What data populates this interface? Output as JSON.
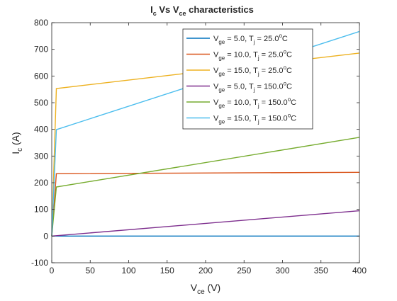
{
  "chart_data": {
    "type": "line",
    "title": {
      "base": "I",
      "base_sub": "c",
      "mid": " Vs V",
      "mid_sub": "ce",
      "tail": " characteristics"
    },
    "xlabel": {
      "base": "V",
      "sub": "ce",
      "tail": " (V)"
    },
    "ylabel": {
      "base": "I",
      "sub": "c",
      "tail": " (A)"
    },
    "xlim": [
      0,
      400
    ],
    "ylim": [
      -100,
      800
    ],
    "xticks": [
      0,
      50,
      100,
      150,
      200,
      250,
      300,
      350,
      400
    ],
    "yticks": [
      -100,
      0,
      100,
      200,
      300,
      400,
      500,
      600,
      700,
      800
    ],
    "grid": false,
    "legend_position": "top-right",
    "series": [
      {
        "name": {
          "vge": "5.0",
          "tj": "25.0"
        },
        "color": "#0072BD",
        "x": [
          0,
          400
        ],
        "y": [
          0,
          0
        ]
      },
      {
        "name": {
          "vge": "10.0",
          "tj": "25.0"
        },
        "color": "#D95319",
        "x": [
          0,
          6,
          400
        ],
        "y": [
          0,
          234,
          239
        ]
      },
      {
        "name": {
          "vge": "15.0",
          "tj": "25.0"
        },
        "color": "#EDB120",
        "x": [
          0,
          6,
          400
        ],
        "y": [
          0,
          553,
          686
        ]
      },
      {
        "name": {
          "vge": "5.0",
          "tj": "150.0"
        },
        "color": "#7E2F8E",
        "x": [
          0,
          400
        ],
        "y": [
          0,
          95
        ]
      },
      {
        "name": {
          "vge": "10.0",
          "tj": "150.0"
        },
        "color": "#77AC30",
        "x": [
          0,
          6,
          400
        ],
        "y": [
          0,
          184,
          370
        ]
      },
      {
        "name": {
          "vge": "15.0",
          "tj": "150.0"
        },
        "color": "#4DBEEE",
        "x": [
          0,
          6,
          400
        ],
        "y": [
          0,
          399,
          767
        ]
      }
    ],
    "legend_text": {
      "vge_prefix": "V",
      "vge_sub": "ge",
      "vge_eq": " = ",
      "tj_prefix": ", T",
      "tj_sub": "j",
      "tj_eq": " = ",
      "deg": "o",
      "unit": "C"
    }
  }
}
